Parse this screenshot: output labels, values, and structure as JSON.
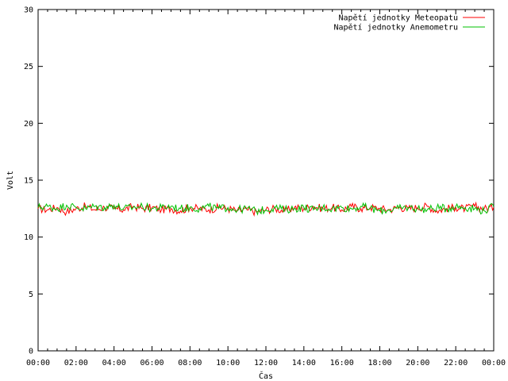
{
  "chart_data": {
    "type": "line",
    "title": "",
    "xlabel": "Čas",
    "ylabel": "Volt",
    "ylim": [
      0,
      30
    ],
    "yticks": [
      0,
      5,
      10,
      15,
      20,
      25,
      30
    ],
    "xlim_hours": [
      0,
      24
    ],
    "xtick_labels": [
      "00:00",
      "02:00",
      "04:00",
      "06:00",
      "08:00",
      "10:00",
      "12:00",
      "14:00",
      "16:00",
      "18:00",
      "20:00",
      "22:00",
      "00:00"
    ],
    "grid": false,
    "legend_position": "top-right",
    "series": [
      {
        "name": "Napětí jednotky Meteopatu",
        "color": "#ff0000",
        "x": [
          "00:00",
          "00:30",
          "01:00",
          "01:30",
          "02:00",
          "02:30",
          "03:00",
          "03:30",
          "04:00",
          "04:30",
          "05:00",
          "05:30",
          "06:00",
          "06:30",
          "07:00",
          "07:30",
          "08:00",
          "08:30",
          "09:00",
          "09:30",
          "10:00",
          "10:30",
          "11:00",
          "11:30",
          "12:00",
          "12:30",
          "13:00",
          "13:30",
          "14:00",
          "14:30",
          "15:00",
          "15:30",
          "16:00",
          "16:30",
          "17:00",
          "17:30",
          "18:00",
          "18:30",
          "19:00",
          "19:30",
          "20:00",
          "20:30",
          "21:00",
          "21:30",
          "22:00",
          "22:30",
          "23:00",
          "23:30",
          "24:00"
        ],
        "y": [
          12.5,
          12.4,
          12.6,
          12.2,
          12.5,
          12.7,
          12.4,
          12.6,
          12.5,
          12.4,
          12.7,
          12.5,
          12.6,
          12.4,
          12.5,
          12.3,
          12.6,
          12.5,
          12.4,
          12.6,
          12.5,
          12.3,
          12.4,
          12.2,
          12.4,
          12.5,
          12.3,
          12.6,
          12.5,
          12.7,
          12.5,
          12.6,
          12.4,
          12.7,
          12.5,
          12.6,
          12.5,
          12.4,
          12.6,
          12.5,
          12.6,
          12.7,
          12.3,
          12.5,
          12.6,
          12.5,
          12.7,
          12.5,
          12.6
        ]
      },
      {
        "name": "Napětí jednotky Anemometru",
        "color": "#00c000",
        "x": [
          "00:00",
          "00:30",
          "01:00",
          "01:30",
          "02:00",
          "02:30",
          "03:00",
          "03:30",
          "04:00",
          "04:30",
          "05:00",
          "05:30",
          "06:00",
          "06:30",
          "07:00",
          "07:30",
          "08:00",
          "08:30",
          "09:00",
          "09:30",
          "10:00",
          "10:30",
          "11:00",
          "11:30",
          "12:00",
          "12:30",
          "13:00",
          "13:30",
          "14:00",
          "14:30",
          "15:00",
          "15:30",
          "16:00",
          "16:30",
          "17:00",
          "17:30",
          "18:00",
          "18:30",
          "19:00",
          "19:30",
          "20:00",
          "20:30",
          "21:00",
          "21:30",
          "22:00",
          "22:30",
          "23:00",
          "23:30",
          "24:00"
        ],
        "y": [
          12.6,
          12.7,
          12.5,
          12.8,
          12.6,
          12.5,
          12.7,
          12.6,
          12.8,
          12.5,
          12.6,
          12.7,
          12.5,
          12.6,
          12.7,
          12.5,
          12.6,
          12.5,
          12.7,
          12.5,
          12.6,
          12.4,
          12.5,
          12.3,
          12.4,
          12.6,
          12.4,
          12.5,
          12.6,
          12.4,
          12.6,
          12.5,
          12.6,
          12.5,
          12.7,
          12.5,
          12.3,
          12.4,
          12.5,
          12.6,
          12.5,
          12.4,
          12.6,
          12.5,
          12.7,
          12.6,
          12.5,
          12.3,
          12.7
        ]
      }
    ]
  }
}
